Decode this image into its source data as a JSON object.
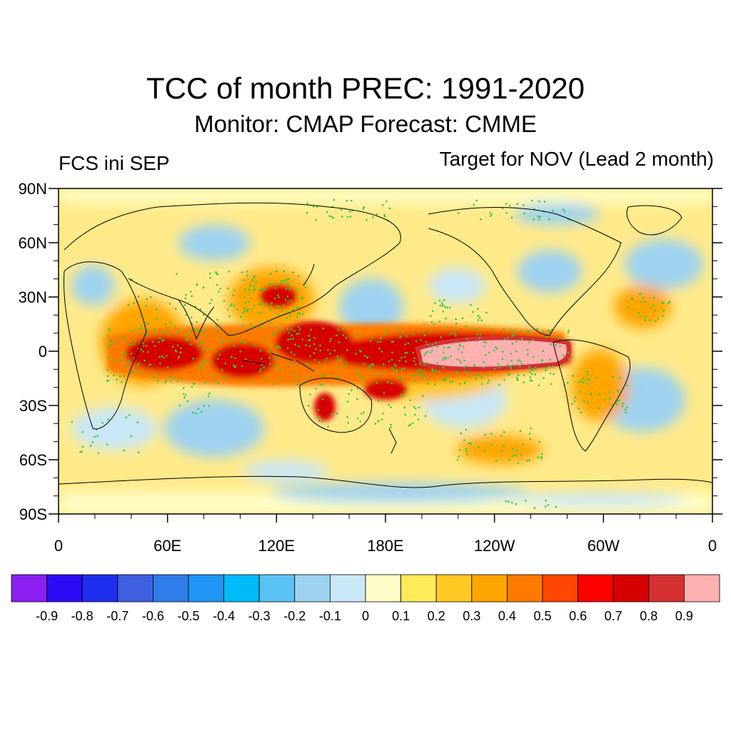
{
  "title": "TCC of month PREC: 1991-2020",
  "subtitle": "Monitor: CMAP   Forecast: CMME",
  "left_label": "FCS ini SEP",
  "right_label": "Target for NOV (Lead 2 month)",
  "axes": {
    "y_ticks": [
      "90N",
      "60N",
      "30N",
      "0",
      "30S",
      "60S",
      "90S"
    ],
    "x_ticks": [
      "0",
      "60E",
      "120E",
      "180E",
      "120W",
      "60W",
      "0"
    ]
  },
  "colorbar": {
    "labels": [
      "-0.9",
      "-0.8",
      "-0.7",
      "-0.6",
      "-0.5",
      "-0.4",
      "-0.3",
      "-0.2",
      "-0.1",
      "0",
      "0.1",
      "0.2",
      "0.3",
      "0.4",
      "0.5",
      "0.6",
      "0.7",
      "0.8",
      "0.9"
    ],
    "colors": [
      "#8a1ff0",
      "#2c0cf5",
      "#1e2ff0",
      "#3d5fe0",
      "#2f7de8",
      "#1e96f5",
      "#00bbf7",
      "#5ac2f2",
      "#9dd2f0",
      "#c9e7f7",
      "#fffec8",
      "#ffea5a",
      "#ffc823",
      "#ffa500",
      "#ff7a00",
      "#ff4500",
      "#ff0000",
      "#d60000",
      "#d43030",
      "#ffb0b0"
    ]
  },
  "significance_color": "#2ecc40",
  "coastline_color": "#000000"
}
